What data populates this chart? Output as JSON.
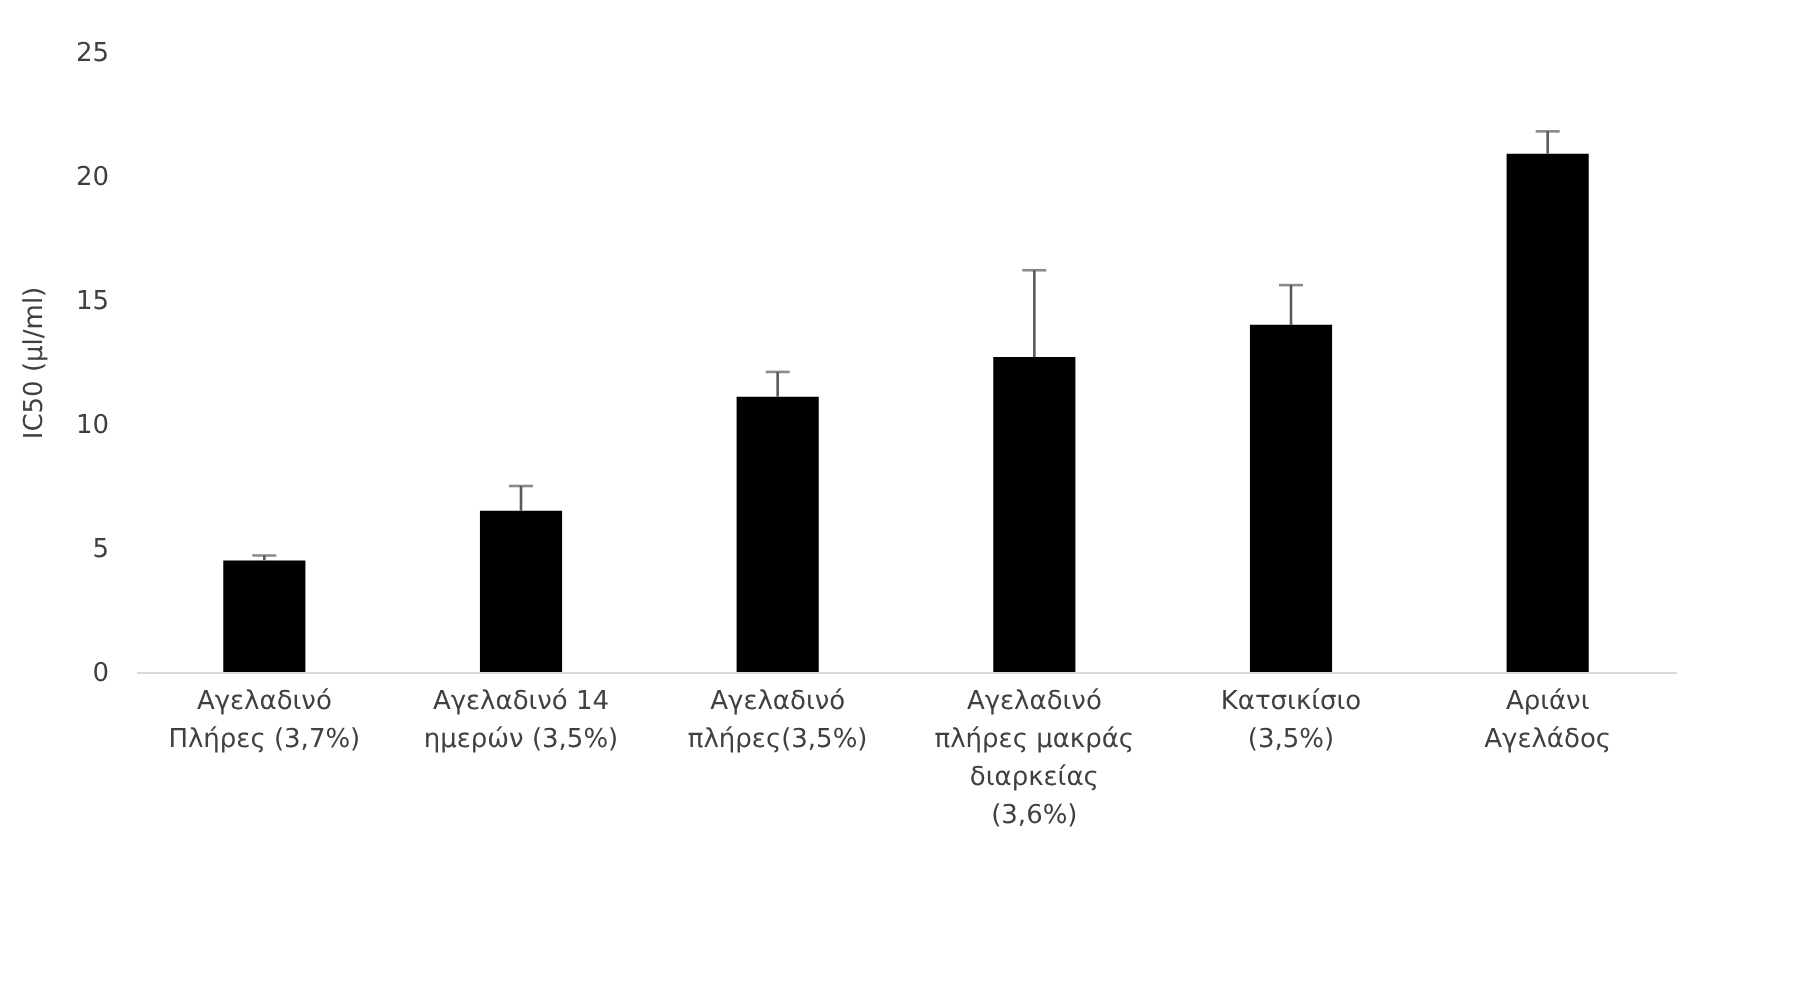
{
  "chart_data": {
    "type": "bar",
    "ylabel": "IC50 (μl/ml)",
    "categories": [
      "Αγελαδινό Πλήρες (3,7%)",
      "Αγελαδινό 14 ημερών (3,5%)",
      "Αγελαδινό πλήρες(3,5%)",
      "Αγελαδινό πλήρες μακράς διαρκείας (3,6%)",
      "Κατσικίσιο (3,5%)",
      "Αριάνι Αγελάδος"
    ],
    "values": [
      4.5,
      6.5,
      11.1,
      12.7,
      14.0,
      20.9
    ],
    "errors": [
      [
        4.5,
        4.7
      ],
      [
        6.5,
        7.5
      ],
      [
        11.1,
        12.1
      ],
      [
        12.7,
        16.2
      ],
      [
        14.0,
        15.6
      ],
      [
        20.9,
        21.8
      ]
    ],
    "color": "#000000",
    "ylim": [
      0,
      25
    ],
    "yticks": [
      0,
      5,
      10,
      15,
      20,
      25
    ],
    "grid": false
  }
}
